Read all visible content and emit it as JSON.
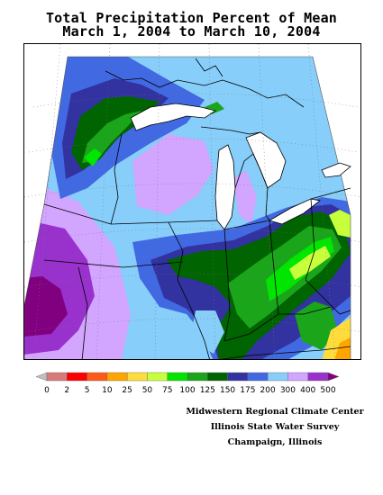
{
  "title": {
    "line1": "Total Precipitation Percent of Mean",
    "line2": "March 1, 2004 to March 10, 2004"
  },
  "legend": {
    "labels": [
      "0",
      "2",
      "5",
      "10",
      "25",
      "50",
      "75",
      "100",
      "125",
      "150",
      "175",
      "200",
      "300",
      "400",
      "500"
    ],
    "colors": [
      "#ffc0cb",
      "#d97a7a",
      "#ff0000",
      "#ff5a1a",
      "#ffa500",
      "#ffdc3c",
      "#c8ff3c",
      "#00e600",
      "#1aa51a",
      "#006400",
      "#3232a0",
      "#4169e1",
      "#87cefa",
      "#d2a5ff",
      "#9932cc",
      "#800080"
    ]
  },
  "credits": {
    "line1": "Midwestern Regional Climate Center",
    "line2": "Illinois State Water Survey",
    "line3": "Champaign, Illinois"
  },
  "map_colors": {
    "very_wet": "#800080",
    "wet_300_400": "#9932cc",
    "wet_200_300": "#d2a5ff",
    "above_175_200": "#87cefa",
    "above_150_175": "#4169e1",
    "above_125_150": "#3232a0",
    "near_100_125": "#006400",
    "near_75_100": "#1aa51a",
    "below_50_75": "#00e600",
    "below_25_50": "#c8ff3c",
    "dry_10_25": "#ffdc3c",
    "dry_5_10": "#ffa500"
  }
}
